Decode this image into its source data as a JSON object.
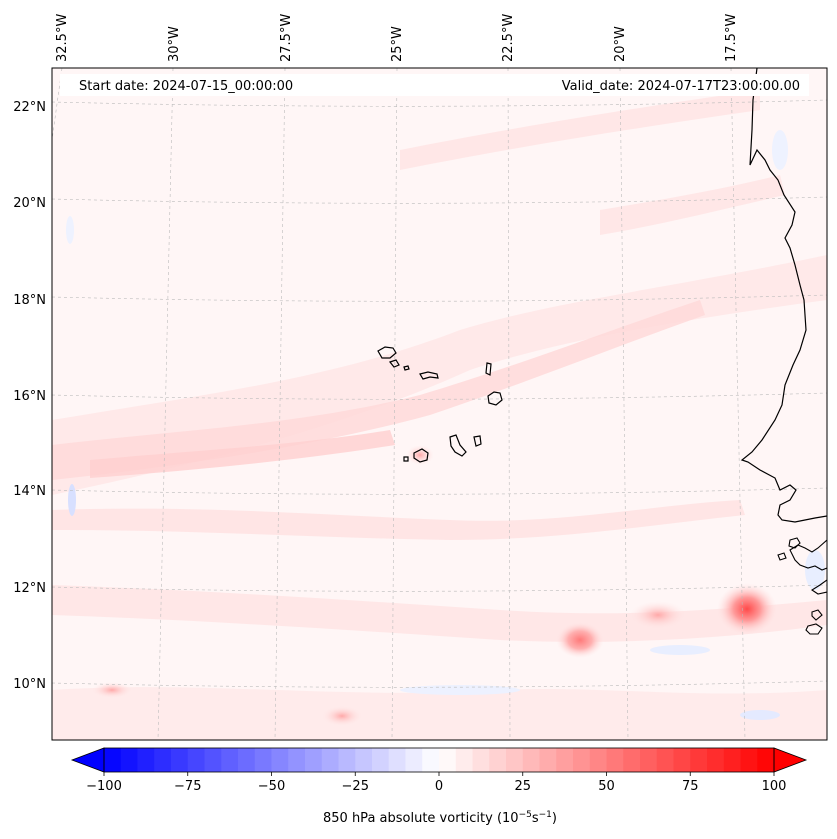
{
  "header": {
    "start_date": "Start date: 2024-07-15_00:00:00",
    "valid_date": "Valid_date: 2024-07-17T23:00:00.00"
  },
  "lon_labels": [
    "32.5°W",
    "30°W",
    "27.5°W",
    "25°W",
    "22.5°W",
    "20°W",
    "17.5°W"
  ],
  "lat_labels": [
    "22°N",
    "20°N",
    "18°N",
    "16°N",
    "14°N",
    "12°N",
    "10°N"
  ],
  "colorbar": {
    "ticks": [
      "−100",
      "−75",
      "−50",
      "−25",
      "0",
      "25",
      "50",
      "75",
      "100"
    ],
    "label_main": "850 hPa absolute vorticity (10",
    "label_exp1": "−5",
    "label_mid": "s",
    "label_exp2": "−1",
    "label_end": ")",
    "min": -100,
    "max": 100,
    "levels": 40,
    "color_neg": "#0000ff",
    "color_zero": "#ffffff",
    "color_pos": "#ff0000"
  },
  "field_colors": {
    "background": "#fff6f6",
    "band_light": "#ffe6e6",
    "band_mid": "#ffd2d2",
    "peak": "#ff6a6a",
    "negative": "#e6ecff"
  },
  "coastline_color": "#000000",
  "grid": true
}
